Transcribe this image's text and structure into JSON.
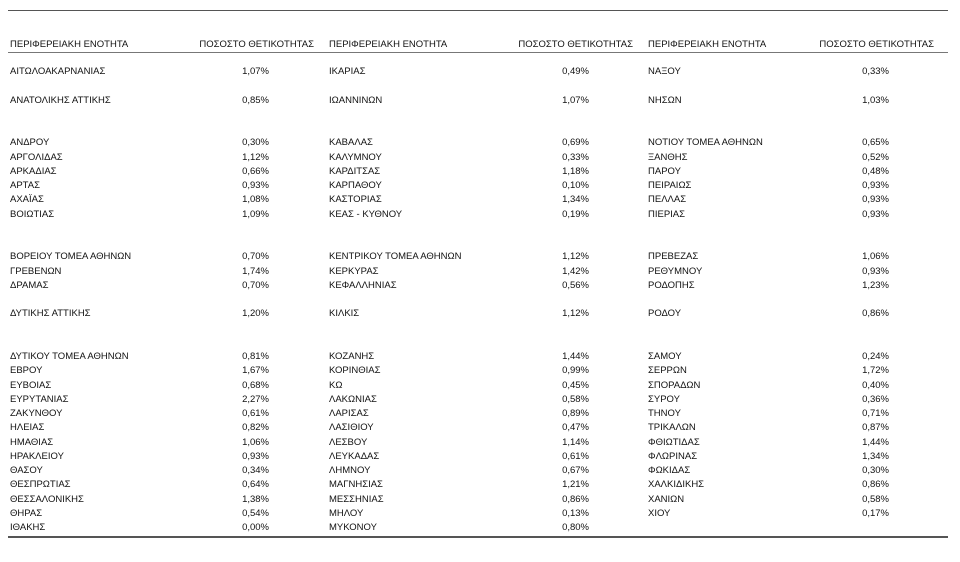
{
  "header": [
    [
      "ΠΕΡΙΦΕΡΕΙΑΚΗ ΕΝΟΤΗΤΑ",
      "ΠΟΣΟΣΤΟ ΘΕΤΙΚΟΤΗΤΑΣ"
    ],
    [
      "ΠΕΡΙΦΕΡΕΙΑΚΗ ΕΝΟΤΗΤΑ",
      "ΠΟΣΟΣΤΟ ΘΕΤΙΚΟΤΗΤΑΣ"
    ],
    [
      "ΠΕΡΙΦΕΡΕΙΑΚΗ ΕΝΟΤΗΤΑ",
      "ΠΟΣΟΣΤΟ ΘΕΤΙΚΟΤΗΤΑΣ"
    ]
  ],
  "blocks": [
    [
      [
        [
          "ΑΙΤΩΛΟΑΚΑΡΝΑΝΙΑΣ",
          "1,07%"
        ],
        [
          "ΙΚΑΡΙΑΣ",
          "0,49%"
        ],
        [
          "ΝΑΞΟΥ",
          "0,33%"
        ]
      ]
    ],
    [
      [
        [
          "ΑΝΑΤΟΛΙΚΗΣ ΑΤΤΙΚΗΣ",
          "0,85%"
        ],
        [
          "ΙΩΑΝΝΙΝΩΝ",
          "1,07%"
        ],
        [
          "ΝΗΣΩΝ",
          "1,03%"
        ]
      ]
    ],
    [
      [
        [
          "ΑΝΔΡΟΥ",
          "0,30%"
        ],
        [
          "ΚΑΒΑΛΑΣ",
          "0,69%"
        ],
        [
          "ΝΟΤΙΟΥ ΤΟΜΕΑ ΑΘΗΝΩΝ",
          "0,65%"
        ]
      ],
      [
        [
          "ΑΡΓΟΛΙΔΑΣ",
          "1,12%"
        ],
        [
          "ΚΑΛΥΜΝΟΥ",
          "0,33%"
        ],
        [
          "ΞΑΝΘΗΣ",
          "0,52%"
        ]
      ],
      [
        [
          "ΑΡΚΑΔΙΑΣ",
          "0,66%"
        ],
        [
          "ΚΑΡΔΙΤΣΑΣ",
          "1,18%"
        ],
        [
          "ΠΑΡΟΥ",
          "0,48%"
        ]
      ],
      [
        [
          "ΑΡΤΑΣ",
          "0,93%"
        ],
        [
          "ΚΑΡΠΑΘΟΥ",
          "0,10%"
        ],
        [
          "ΠΕΙΡΑΙΩΣ",
          "0,93%"
        ]
      ],
      [
        [
          "ΑΧΑΪΑΣ",
          "1,08%"
        ],
        [
          "ΚΑΣΤΟΡΙΑΣ",
          "1,34%"
        ],
        [
          "ΠΕΛΛΑΣ",
          "0,93%"
        ]
      ],
      [
        [
          "ΒΟΙΩΤΙΑΣ",
          "1,09%"
        ],
        [
          "ΚΕΑΣ - ΚΥΘΝΟΥ",
          "0,19%"
        ],
        [
          "ΠΙΕΡΙΑΣ",
          "0,93%"
        ]
      ]
    ],
    [
      [
        [
          "ΒΟΡΕΙΟΥ ΤΟΜΕΑ ΑΘΗΝΩΝ",
          "0,70%"
        ],
        [
          "ΚΕΝΤΡΙΚΟΥ ΤΟΜΕΑ ΑΘΗΝΩΝ",
          "1,12%"
        ],
        [
          "ΠΡΕΒΕΖΑΣ",
          "1,06%"
        ]
      ],
      [
        [
          "ΓΡΕΒΕΝΩΝ",
          "1,74%"
        ],
        [
          "ΚΕΡΚΥΡΑΣ",
          "1,42%"
        ],
        [
          "ΡΕΘΥΜΝΟΥ",
          "0,93%"
        ]
      ],
      [
        [
          "ΔΡΑΜΑΣ",
          "0,70%"
        ],
        [
          "ΚΕΦΑΛΛΗΝΙΑΣ",
          "0,56%"
        ],
        [
          "ΡΟΔΟΠΗΣ",
          "1,23%"
        ]
      ]
    ],
    [
      [
        [
          "ΔΥΤΙΚΗΣ ΑΤΤΙΚΗΣ",
          "1,20%"
        ],
        [
          "ΚΙΛΚΙΣ",
          "1,12%"
        ],
        [
          "ΡΟΔΟΥ",
          "0,86%"
        ]
      ]
    ],
    [
      [
        [
          "ΔΥΤΙΚΟΥ ΤΟΜΕΑ ΑΘΗΝΩΝ",
          "0,81%"
        ],
        [
          "ΚΟΖΑΝΗΣ",
          "1,44%"
        ],
        [
          "ΣΑΜΟΥ",
          "0,24%"
        ]
      ],
      [
        [
          "ΕΒΡΟΥ",
          "1,67%"
        ],
        [
          "ΚΟΡΙΝΘΙΑΣ",
          "0,99%"
        ],
        [
          "ΣΕΡΡΩΝ",
          "1,72%"
        ]
      ],
      [
        [
          "ΕΥΒΟΙΑΣ",
          "0,68%"
        ],
        [
          "ΚΩ",
          "0,45%"
        ],
        [
          "ΣΠΟΡΑΔΩΝ",
          "0,40%"
        ]
      ],
      [
        [
          "ΕΥΡΥΤΑΝΙΑΣ",
          "2,27%"
        ],
        [
          "ΛΑΚΩΝΙΑΣ",
          "0,58%"
        ],
        [
          "ΣΥΡΟΥ",
          "0,36%"
        ]
      ],
      [
        [
          "ΖΑΚΥΝΘΟΥ",
          "0,61%"
        ],
        [
          "ΛΑΡΙΣΑΣ",
          "0,89%"
        ],
        [
          "ΤΗΝΟΥ",
          "0,71%"
        ]
      ],
      [
        [
          "ΗΛΕΙΑΣ",
          "0,82%"
        ],
        [
          "ΛΑΣΙΘΙΟΥ",
          "0,47%"
        ],
        [
          "ΤΡΙΚΑΛΩΝ",
          "0,87%"
        ]
      ],
      [
        [
          "ΗΜΑΘΙΑΣ",
          "1,06%"
        ],
        [
          "ΛΕΣΒΟΥ",
          "1,14%"
        ],
        [
          "ΦΘΙΩΤΙΔΑΣ",
          "1,44%"
        ]
      ],
      [
        [
          "ΗΡΑΚΛΕΙΟΥ",
          "0,93%"
        ],
        [
          "ΛΕΥΚΑΔΑΣ",
          "0,61%"
        ],
        [
          "ΦΛΩΡΙΝΑΣ",
          "1,34%"
        ]
      ],
      [
        [
          "ΘΑΣΟΥ",
          "0,34%"
        ],
        [
          "ΛΗΜΝΟΥ",
          "0,67%"
        ],
        [
          "ΦΩΚΙΔΑΣ",
          "0,30%"
        ]
      ],
      [
        [
          "ΘΕΣΠΡΩΤΙΑΣ",
          "0,64%"
        ],
        [
          "ΜΑΓΝΗΣΙΑΣ",
          "1,21%"
        ],
        [
          "ΧΑΛΚΙΔΙΚΗΣ",
          "0,86%"
        ]
      ],
      [
        [
          "ΘΕΣΣΑΛΟΝΙΚΗΣ",
          "1,38%"
        ],
        [
          "ΜΕΣΣΗΝΙΑΣ",
          "0,86%"
        ],
        [
          "ΧΑΝΙΩΝ",
          "0,58%"
        ]
      ],
      [
        [
          "ΘΗΡΑΣ",
          "0,54%"
        ],
        [
          "ΜΗΛΟΥ",
          "0,13%"
        ],
        [
          "ΧΙΟΥ",
          "0,17%"
        ]
      ],
      [
        [
          "ΙΘΑΚΗΣ",
          "0,00%"
        ],
        [
          "ΜΥΚΟΝΟΥ",
          "0,80%"
        ]
      ]
    ]
  ]
}
